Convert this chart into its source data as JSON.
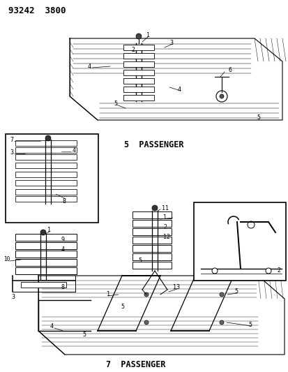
{
  "title_code": "93242  3800",
  "bg_color": "#ffffff",
  "line_color": "#000000",
  "label_5pass": "5  PASSENGER",
  "label_7pass": "7  PASSENGER",
  "fig_width": 4.14,
  "fig_height": 5.33,
  "dpi": 100
}
